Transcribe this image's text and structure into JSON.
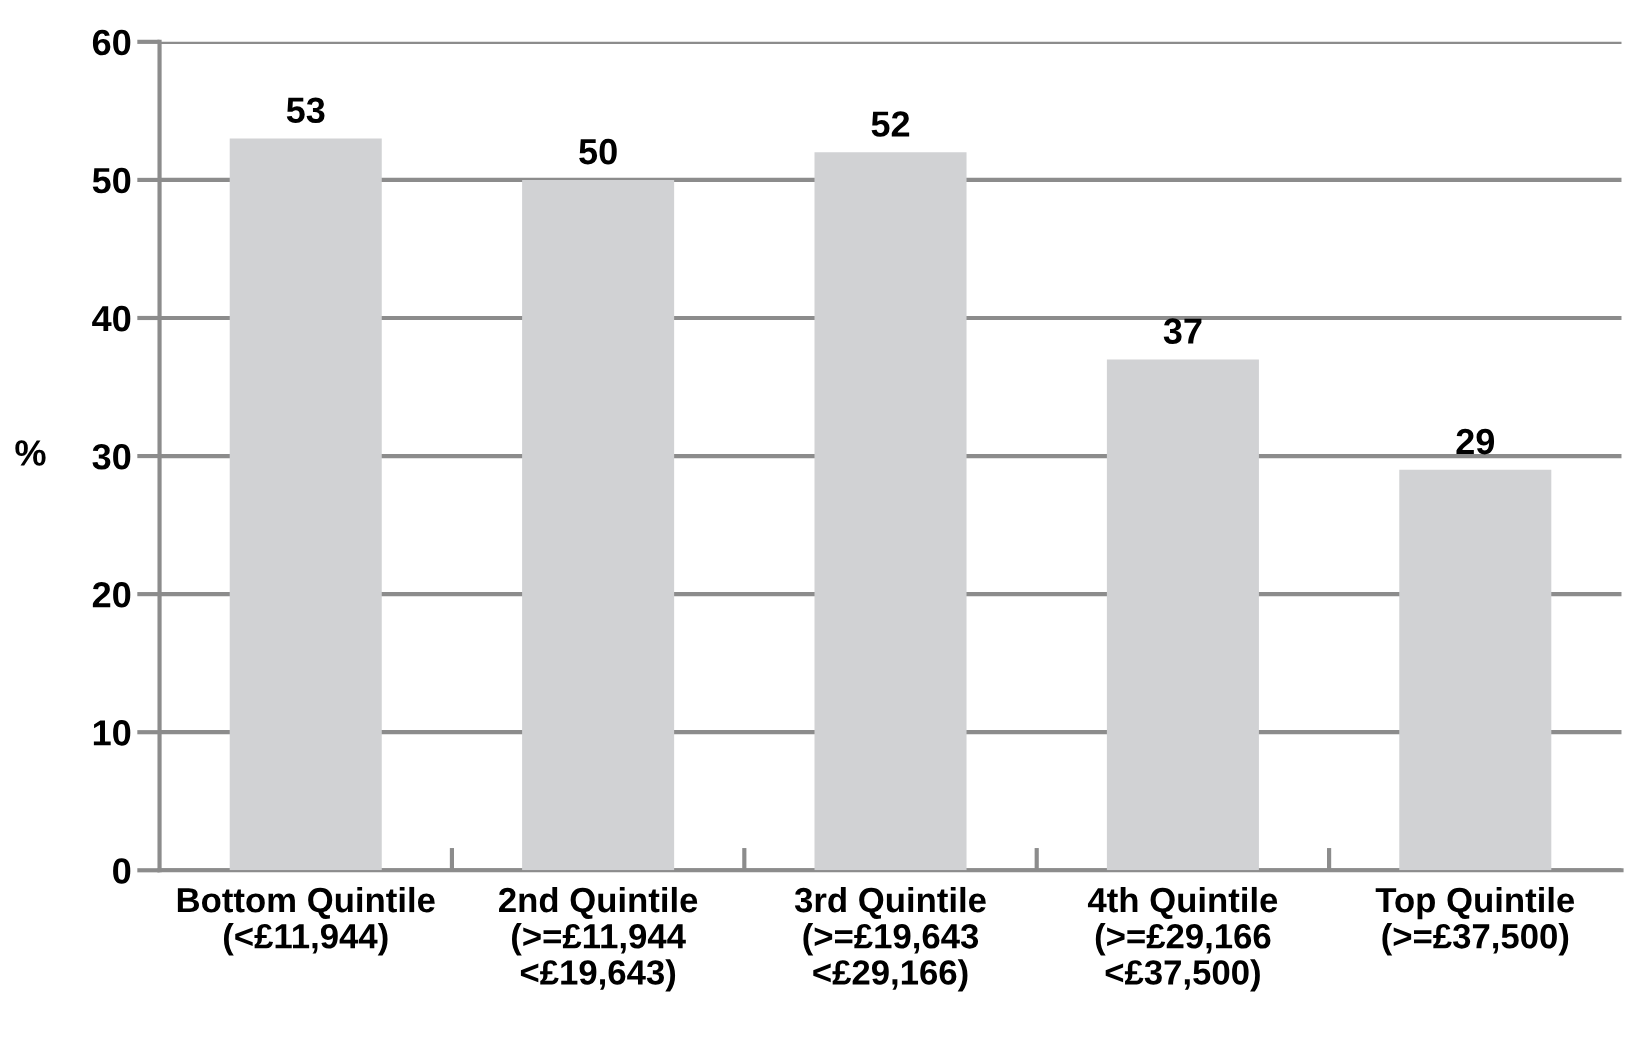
{
  "chart_data": {
    "type": "bar",
    "categories": [
      "Bottom Quintile\n(<£11,944)",
      "2nd Quintile\n(>=£11,944\n<£19,643)",
      "3rd Quintile\n(>=£19,643\n<£29,166)",
      "4th Quintile\n(>=£29,166\n<£37,500)",
      "Top Quintile\n(>=£37,500)"
    ],
    "values": [
      53,
      50,
      52,
      37,
      29
    ],
    "color": "#d1d2d4",
    "ylabel": "%",
    "ylim": [
      0,
      60
    ],
    "yticks": [
      0,
      10,
      20,
      30,
      40,
      50,
      60
    ],
    "grid": "y",
    "data_labels": true,
    "legend": false
  }
}
